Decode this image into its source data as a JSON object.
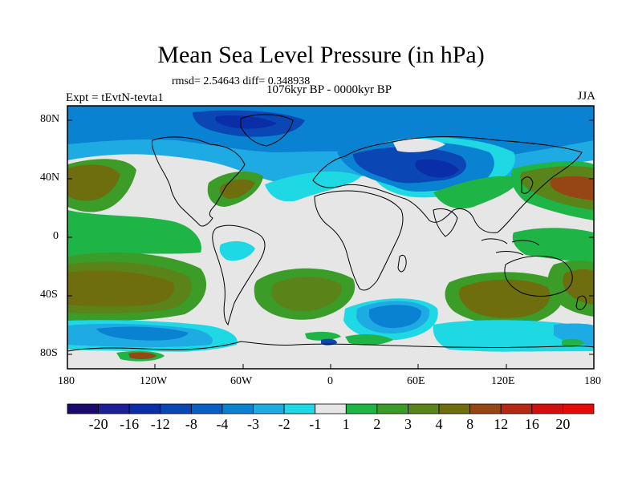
{
  "title": "Mean Sea Level Pressure (in hPa)",
  "stats_text": "rmsd= 2.54643 diff= 0.348938",
  "period": "1076kyr BP - 0000kyr BP",
  "experiment": "Expt = tEvtN-tevta1",
  "season": "JJA",
  "lat_ticks": [
    "80N",
    "40N",
    "0",
    "40S",
    "80S"
  ],
  "lon_ticks": [
    "180",
    "120W",
    "60W",
    "0",
    "60E",
    "120E",
    "180"
  ],
  "colorbar": {
    "labels": [
      "-20",
      "-16",
      "-12",
      "-8",
      "-4",
      "-3",
      "-2",
      "-1",
      "1",
      "2",
      "3",
      "4",
      "8",
      "12",
      "16",
      "20"
    ],
    "colors": [
      "#1a0a6e",
      "#1e1e98",
      "#0a2ea8",
      "#0a46b4",
      "#0a5ec4",
      "#0a82d2",
      "#1eaae2",
      "#1ed8e4",
      "#e6e6e6",
      "#1eb446",
      "#3c9c28",
      "#5a841a",
      "#6e6e0e",
      "#964614",
      "#b42814",
      "#d21010",
      "#e60a0a"
    ]
  },
  "colors": {
    "neutral": "#e6e6e6",
    "coastline": "#000000"
  }
}
